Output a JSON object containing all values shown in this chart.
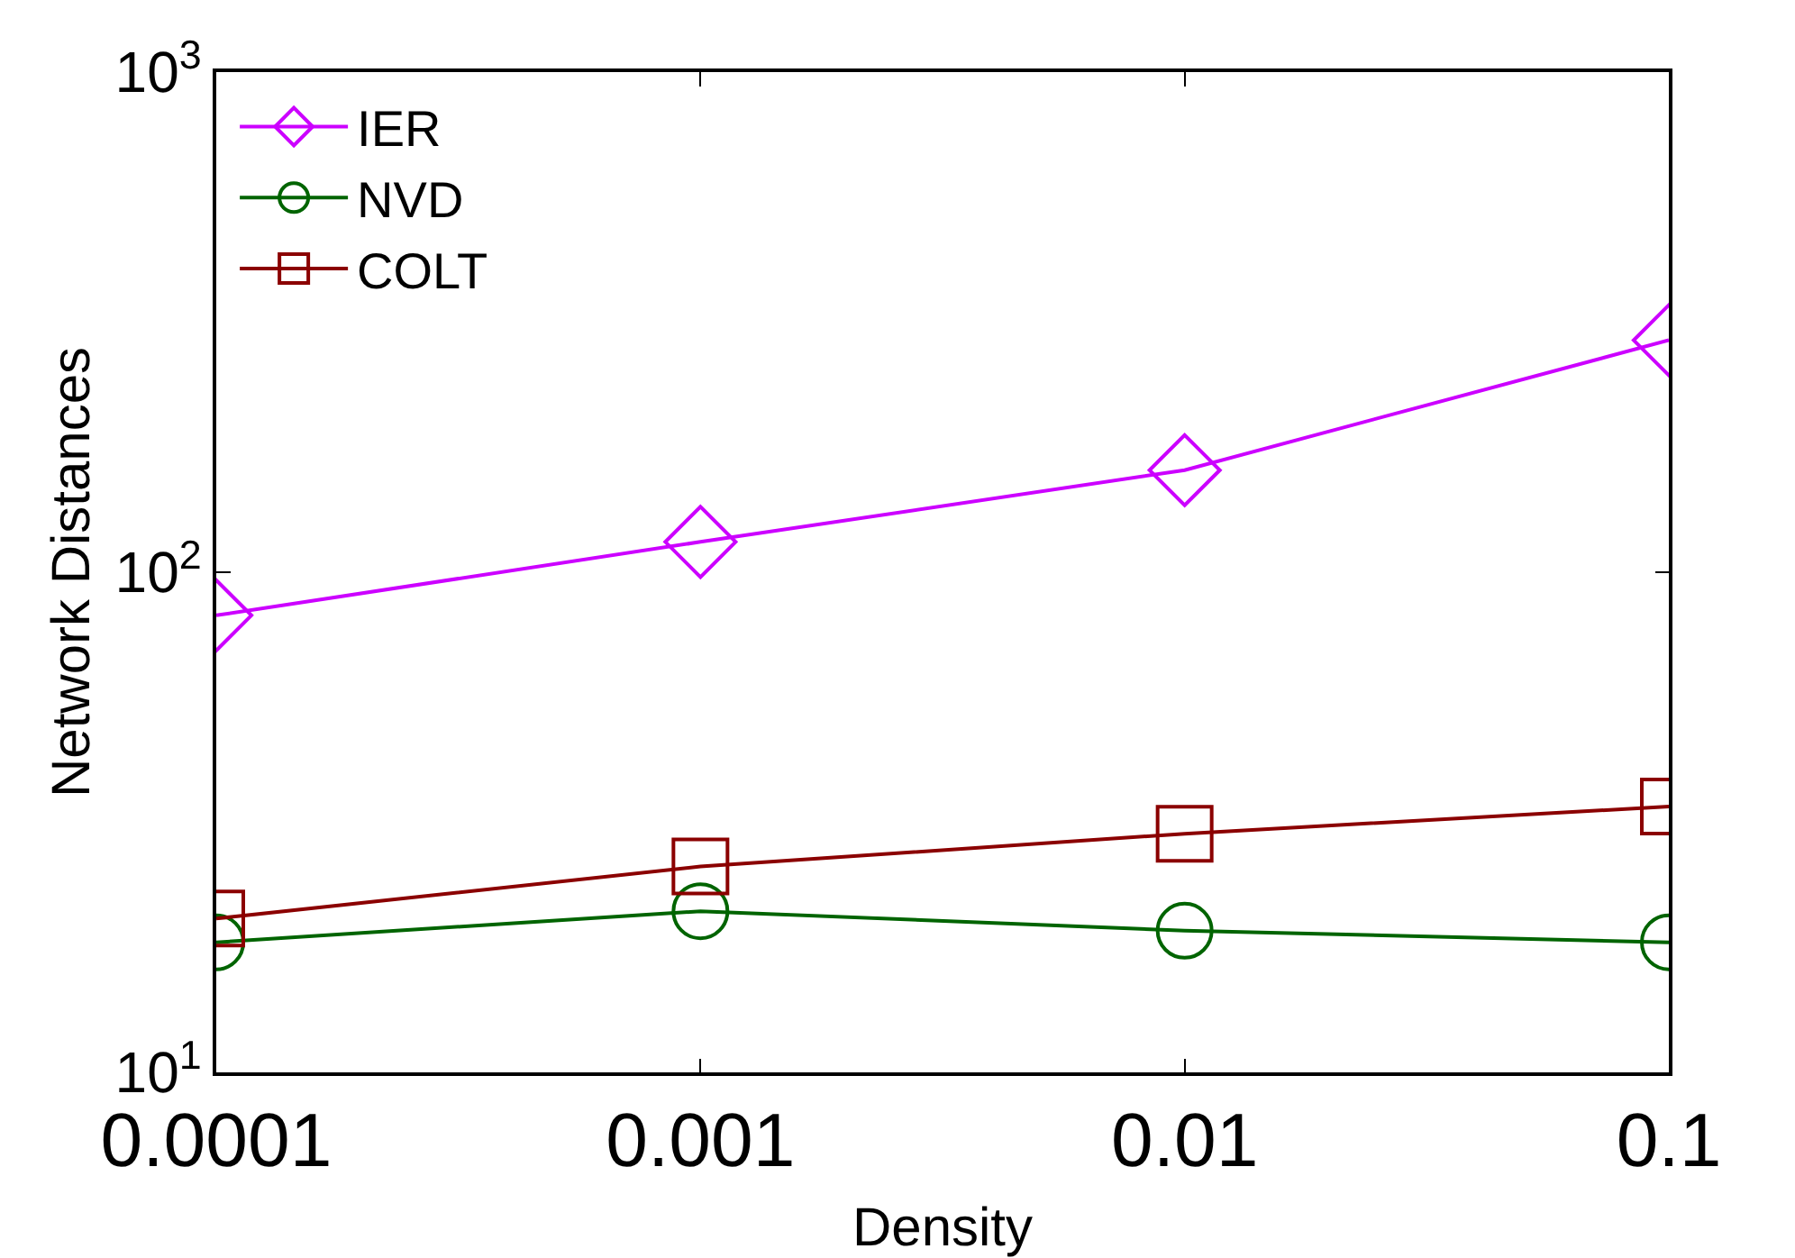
{
  "chart_data": {
    "type": "line",
    "xlabel": "Density",
    "ylabel": "Network Distances",
    "log": "xy",
    "x": [
      0.0001,
      0.001,
      0.01,
      0.1
    ],
    "xlim": [
      0.0001,
      0.1
    ],
    "xticks": [
      0.0001,
      0.001,
      0.01,
      0.1
    ],
    "ylim": [
      10,
      1000
    ],
    "yticks": [
      {
        "value": 10,
        "label": "10$^{1}$"
      },
      {
        "value": 100,
        "label": "10$^{2}$"
      },
      {
        "value": 1000,
        "label": "10$^{3}$"
      }
    ],
    "grid": false,
    "legend": "top left",
    "line_style": "solid",
    "series": [
      {
        "name": "IER",
        "color": "#cc00ff",
        "marker": "diamond",
        "values": [
          82,
          115,
          160,
          291
        ]
      },
      {
        "name": "NVD",
        "color": "#006400",
        "marker": "circle",
        "values": [
          18.2,
          21,
          19.2,
          18.2
        ]
      },
      {
        "name": "COLT",
        "color": "#8b0000",
        "marker": "square",
        "values": [
          20.3,
          25.8,
          30,
          34
        ]
      }
    ]
  }
}
